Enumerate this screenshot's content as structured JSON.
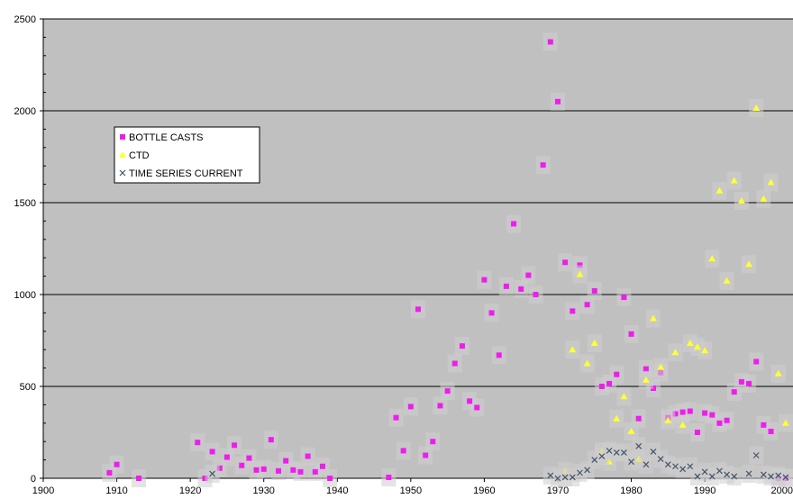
{
  "chart_data": {
    "type": "scatter",
    "title": "",
    "xlabel": "",
    "ylabel": "",
    "xlim": [
      1900,
      2002
    ],
    "ylim": [
      0,
      2500
    ],
    "x_ticks": [
      "1900",
      "1910",
      "1920",
      "1930",
      "1940",
      "1950",
      "1960",
      "1970",
      "1980",
      "1990",
      "2000"
    ],
    "y_ticks": [
      "0",
      "500",
      "1000",
      "1500",
      "2000",
      "2500"
    ],
    "grid": "horizontal",
    "legend_position": "upper-left",
    "background_color": "#c0c0c0",
    "series": [
      {
        "name": "BOTTLE CASTS",
        "marker": "square",
        "color": "#ee1dee",
        "points": [
          [
            1909,
            30
          ],
          [
            1910,
            75
          ],
          [
            1913,
            0
          ],
          [
            1921,
            195
          ],
          [
            1922,
            0
          ],
          [
            1923,
            145
          ],
          [
            1924,
            55
          ],
          [
            1925,
            115
          ],
          [
            1926,
            180
          ],
          [
            1927,
            70
          ],
          [
            1928,
            110
          ],
          [
            1929,
            45
          ],
          [
            1930,
            50
          ],
          [
            1931,
            210
          ],
          [
            1932,
            40
          ],
          [
            1933,
            95
          ],
          [
            1934,
            45
          ],
          [
            1935,
            35
          ],
          [
            1936,
            120
          ],
          [
            1937,
            35
          ],
          [
            1938,
            65
          ],
          [
            1939,
            0
          ],
          [
            1947,
            5
          ],
          [
            1948,
            330
          ],
          [
            1949,
            150
          ],
          [
            1950,
            390
          ],
          [
            1951,
            920
          ],
          [
            1952,
            125
          ],
          [
            1953,
            200
          ],
          [
            1954,
            395
          ],
          [
            1955,
            475
          ],
          [
            1956,
            625
          ],
          [
            1957,
            720
          ],
          [
            1958,
            420
          ],
          [
            1959,
            385
          ],
          [
            1960,
            1080
          ],
          [
            1961,
            900
          ],
          [
            1962,
            670
          ],
          [
            1963,
            1045
          ],
          [
            1964,
            1385
          ],
          [
            1965,
            1030
          ],
          [
            1966,
            1105
          ],
          [
            1967,
            1000
          ],
          [
            1968,
            1705
          ],
          [
            1969,
            2375
          ],
          [
            1970,
            2050
          ],
          [
            1971,
            1175
          ],
          [
            1972,
            910
          ],
          [
            1973,
            1160
          ],
          [
            1974,
            945
          ],
          [
            1975,
            1020
          ],
          [
            1976,
            500
          ],
          [
            1977,
            515
          ],
          [
            1978,
            565
          ],
          [
            1979,
            985
          ],
          [
            1980,
            785
          ],
          [
            1981,
            325
          ],
          [
            1982,
            595
          ],
          [
            1983,
            490
          ],
          [
            1984,
            575
          ],
          [
            1985,
            330
          ],
          [
            1986,
            350
          ],
          [
            1987,
            360
          ],
          [
            1988,
            365
          ],
          [
            1989,
            250
          ],
          [
            1990,
            355
          ],
          [
            1991,
            345
          ],
          [
            1992,
            300
          ],
          [
            1993,
            315
          ],
          [
            1994,
            470
          ],
          [
            1995,
            525
          ],
          [
            1996,
            515
          ],
          [
            1997,
            635
          ],
          [
            1998,
            290
          ],
          [
            1999,
            255
          ],
          [
            2000,
            0
          ],
          [
            2001,
            0
          ]
        ]
      },
      {
        "name": "CTD",
        "marker": "triangle",
        "color": "#ffff33",
        "points": [
          [
            1971,
            40
          ],
          [
            1972,
            700
          ],
          [
            1973,
            1110
          ],
          [
            1974,
            625
          ],
          [
            1975,
            735
          ],
          [
            1976,
            145
          ],
          [
            1977,
            90
          ],
          [
            1978,
            325
          ],
          [
            1979,
            445
          ],
          [
            1980,
            255
          ],
          [
            1981,
            105
          ],
          [
            1982,
            535
          ],
          [
            1983,
            870
          ],
          [
            1984,
            605
          ],
          [
            1985,
            315
          ],
          [
            1986,
            685
          ],
          [
            1987,
            290
          ],
          [
            1988,
            735
          ],
          [
            1989,
            715
          ],
          [
            1990,
            695
          ],
          [
            1991,
            1195
          ],
          [
            1992,
            1565
          ],
          [
            1993,
            1075
          ],
          [
            1994,
            1620
          ],
          [
            1995,
            1510
          ],
          [
            1996,
            1165
          ],
          [
            1997,
            2015
          ],
          [
            1998,
            1520
          ],
          [
            1999,
            1610
          ],
          [
            2000,
            570
          ],
          [
            2001,
            300
          ]
        ]
      },
      {
        "name": "TIME SERIES CURRENT",
        "marker": "x",
        "color": "#44546a",
        "points": [
          [
            1923,
            25
          ],
          [
            1969,
            15
          ],
          [
            1970,
            0
          ],
          [
            1971,
            5
          ],
          [
            1972,
            5
          ],
          [
            1973,
            30
          ],
          [
            1974,
            45
          ],
          [
            1975,
            100
          ],
          [
            1976,
            120
          ],
          [
            1977,
            150
          ],
          [
            1978,
            140
          ],
          [
            1979,
            140
          ],
          [
            1980,
            90
          ],
          [
            1981,
            175
          ],
          [
            1982,
            75
          ],
          [
            1983,
            145
          ],
          [
            1984,
            105
          ],
          [
            1985,
            75
          ],
          [
            1986,
            65
          ],
          [
            1987,
            50
          ],
          [
            1988,
            65
          ],
          [
            1989,
            10
          ],
          [
            1990,
            35
          ],
          [
            1991,
            10
          ],
          [
            1992,
            40
          ],
          [
            1993,
            20
          ],
          [
            1994,
            10
          ],
          [
            1996,
            25
          ],
          [
            1997,
            125
          ],
          [
            1998,
            20
          ],
          [
            1999,
            10
          ],
          [
            2000,
            15
          ],
          [
            2001,
            5
          ]
        ]
      }
    ]
  }
}
